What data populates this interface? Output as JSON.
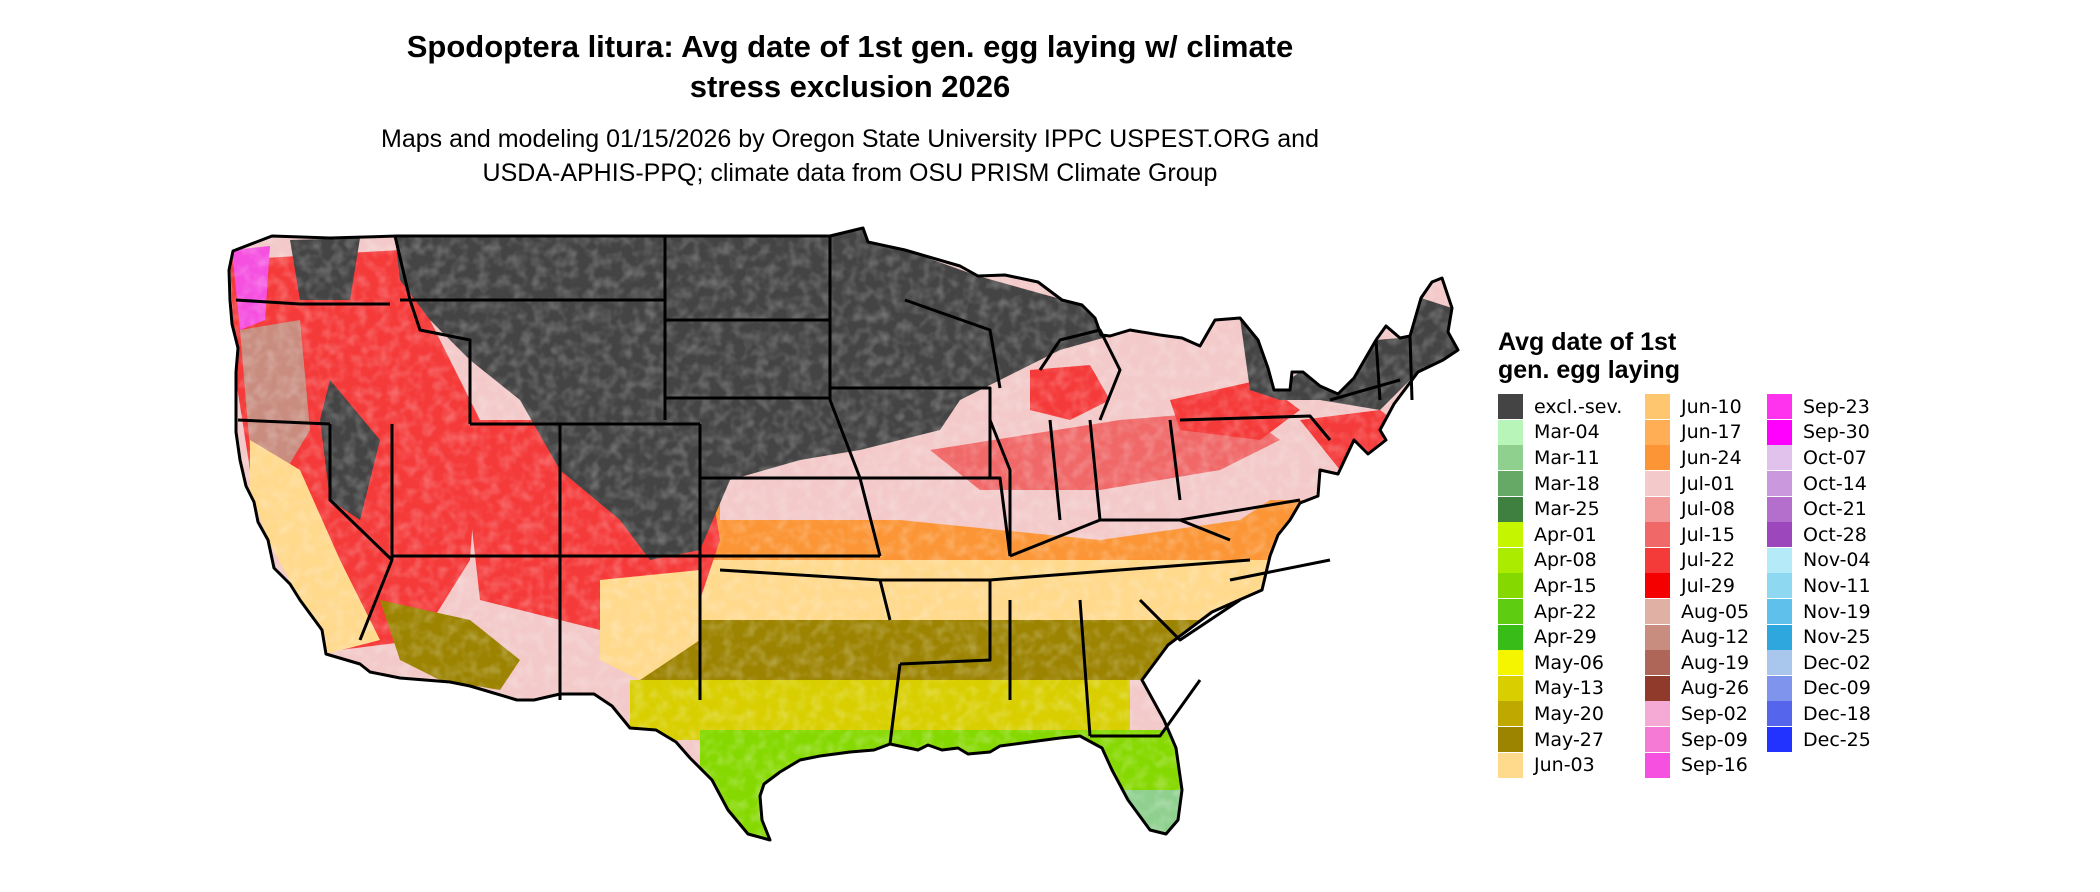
{
  "title": "Spodoptera litura: Avg date of 1st gen. egg laying w/ climate stress exclusion 2026",
  "title_lines": [
    "Spodoptera litura: Avg date of 1st gen. egg laying w/ climate",
    "stress exclusion 2026"
  ],
  "subtitle_lines": [
    "Maps and modeling 01/15/2026 by Oregon State University IPPC USPEST.ORG and",
    "USDA-APHIS-PPQ; climate data from OSU PRISM Climate Group"
  ],
  "legend": {
    "title_lines": [
      "Avg date of 1st",
      "gen. egg laying"
    ],
    "columns": [
      [
        {
          "label": "excl.-sev.",
          "color": "#444444"
        },
        {
          "label": "Mar-04",
          "color": "#b8f5b8"
        },
        {
          "label": "Mar-11",
          "color": "#8fd08f"
        },
        {
          "label": "Mar-18",
          "color": "#66a866"
        },
        {
          "label": "Mar-25",
          "color": "#3f7f3f"
        },
        {
          "label": "Apr-01",
          "color": "#c6f500"
        },
        {
          "label": "Apr-08",
          "color": "#aaeb00"
        },
        {
          "label": "Apr-15",
          "color": "#86d900"
        },
        {
          "label": "Apr-22",
          "color": "#5ecc10"
        },
        {
          "label": "Apr-29",
          "color": "#38bd18"
        },
        {
          "label": "May-06",
          "color": "#f5f500"
        },
        {
          "label": "May-13",
          "color": "#d9cf00"
        },
        {
          "label": "May-20",
          "color": "#bfa800"
        },
        {
          "label": "May-27",
          "color": "#9c8300"
        },
        {
          "label": "Jun-03",
          "color": "#ffd98c"
        }
      ],
      [
        {
          "label": "Jun-10",
          "color": "#ffc670"
        },
        {
          "label": "Jun-17",
          "color": "#ffae55"
        },
        {
          "label": "Jun-24",
          "color": "#fb9535"
        },
        {
          "label": "Jul-01",
          "color": "#f3c9c9"
        },
        {
          "label": "Jul-08",
          "color": "#f29999"
        },
        {
          "label": "Jul-15",
          "color": "#f06868"
        },
        {
          "label": "Jul-22",
          "color": "#f53a3a"
        },
        {
          "label": "Jul-29",
          "color": "#f50000"
        },
        {
          "label": "Aug-05",
          "color": "#e0b0a5"
        },
        {
          "label": "Aug-12",
          "color": "#c98d80"
        },
        {
          "label": "Aug-19",
          "color": "#ad6658"
        },
        {
          "label": "Aug-26",
          "color": "#8f3a2a"
        },
        {
          "label": "Sep-02",
          "color": "#f5aad6"
        },
        {
          "label": "Sep-09",
          "color": "#f57ad6"
        },
        {
          "label": "Sep-16",
          "color": "#f550e0"
        }
      ],
      [
        {
          "label": "Sep-23",
          "color": "#ff33ee"
        },
        {
          "label": "Sep-30",
          "color": "#ff00ff"
        },
        {
          "label": "Oct-07",
          "color": "#e0c2ec"
        },
        {
          "label": "Oct-14",
          "color": "#ca98dc"
        },
        {
          "label": "Oct-21",
          "color": "#b46fcc"
        },
        {
          "label": "Oct-28",
          "color": "#9c48bc"
        },
        {
          "label": "Nov-04",
          "color": "#b5ebf8"
        },
        {
          "label": "Nov-11",
          "color": "#8fd8f2"
        },
        {
          "label": "Nov-19",
          "color": "#5fc0ec"
        },
        {
          "label": "Nov-25",
          "color": "#2ea6de"
        },
        {
          "label": "Dec-02",
          "color": "#a9c6ec"
        },
        {
          "label": "Dec-09",
          "color": "#7f94ec"
        },
        {
          "label": "Dec-18",
          "color": "#5566ec"
        },
        {
          "label": "Dec-25",
          "color": "#2233ff"
        }
      ]
    ]
  },
  "map_colors": {
    "excluded": "#444444",
    "border": "#000000",
    "missing": "#ffffff",
    "mar": "#8fd08f",
    "apr": "#86d900",
    "may_early": "#d9cf00",
    "may_late": "#9c8300",
    "jun_early": "#ffd98c",
    "jun_late": "#fb9535",
    "jul_early": "#f3c9c9",
    "jul_mid": "#f06868",
    "jul_late": "#f53a3a",
    "aug": "#c98d80",
    "sep": "#f550e0"
  }
}
